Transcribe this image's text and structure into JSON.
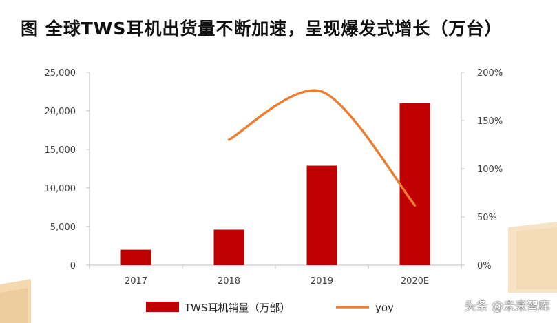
{
  "title": "图 全球TWS耳机出货量不断加速，呈现爆发式增长（万台）",
  "watermark": "头条 @未来智库",
  "colors": {
    "bar": "#c00000",
    "line": "#ed7d31",
    "axis": "#bfbfbf",
    "text": "#404040"
  },
  "chart_data": {
    "type": "bar+line",
    "categories": [
      "2017",
      "2018",
      "2019",
      "2020E"
    ],
    "series": [
      {
        "name": "TWS耳机销量（万部）",
        "type": "bar",
        "axis": "left",
        "values": [
          2000,
          4600,
          12900,
          21000
        ]
      },
      {
        "name": "yoy",
        "type": "line",
        "axis": "right",
        "values": [
          null,
          130,
          180,
          62
        ]
      }
    ],
    "y_left": {
      "min": 0,
      "max": 25000,
      "ticks": [
        "0",
        "5,000",
        "10,000",
        "15,000",
        "20,000",
        "25,000"
      ]
    },
    "y_right": {
      "min": 0,
      "max": 200,
      "ticks": [
        "0%",
        "50%",
        "100%",
        "150%",
        "200%"
      ]
    },
    "grid": false,
    "legend_position": "bottom"
  }
}
